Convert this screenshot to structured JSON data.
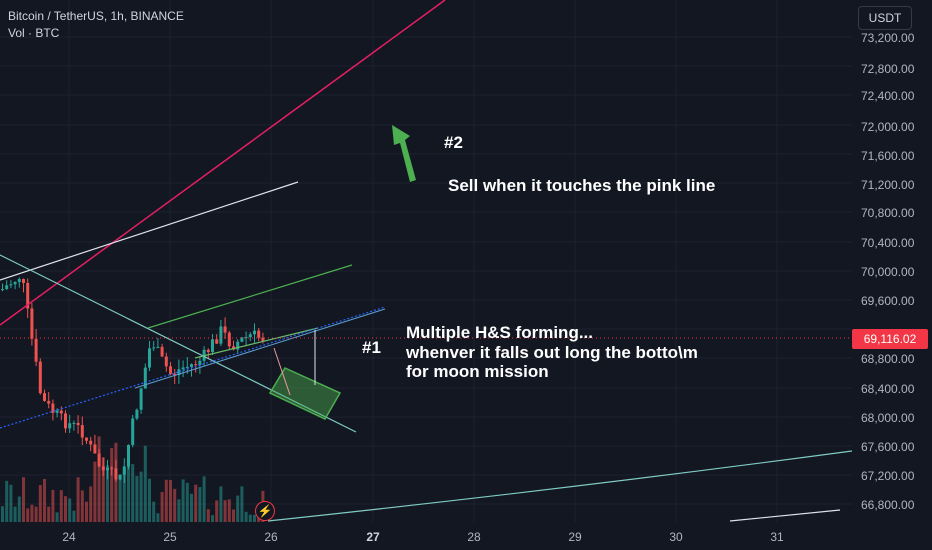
{
  "header": {
    "symbol_line": "Bitcoin / TetherUS, 1h, BINANCE",
    "volume_line": "Vol · BTC"
  },
  "price_scale": {
    "currency": "USDT",
    "ticks": [
      "73,200.00",
      "72,800.00",
      "72,400.00",
      "72,000.00",
      "71,600.00",
      "71,200.00",
      "70,800.00",
      "70,400.00",
      "70,000.00",
      "69,600.00",
      "68,800.00",
      "68,400.00",
      "68,000.00",
      "67,600.00",
      "67,200.00",
      "66,800.00"
    ],
    "last_price": "69,116.02"
  },
  "time_scale": {
    "ticks": [
      "24",
      "25",
      "26",
      "27",
      "28",
      "29",
      "30",
      "31"
    ]
  },
  "annotations": {
    "label_2": "#2",
    "sell_text": "Sell when it touches the pink line",
    "label_1": "#1",
    "hs_line1": "Multiple H&S forming...",
    "hs_line2": "whenver it falls out long the  botto\\m",
    "hs_line3": "for moon mission"
  },
  "colors": {
    "background": "#131722",
    "up": "#26a69a",
    "down": "#ef5350",
    "pink_line": "#e91e63",
    "arrow": "#4caf50"
  }
}
